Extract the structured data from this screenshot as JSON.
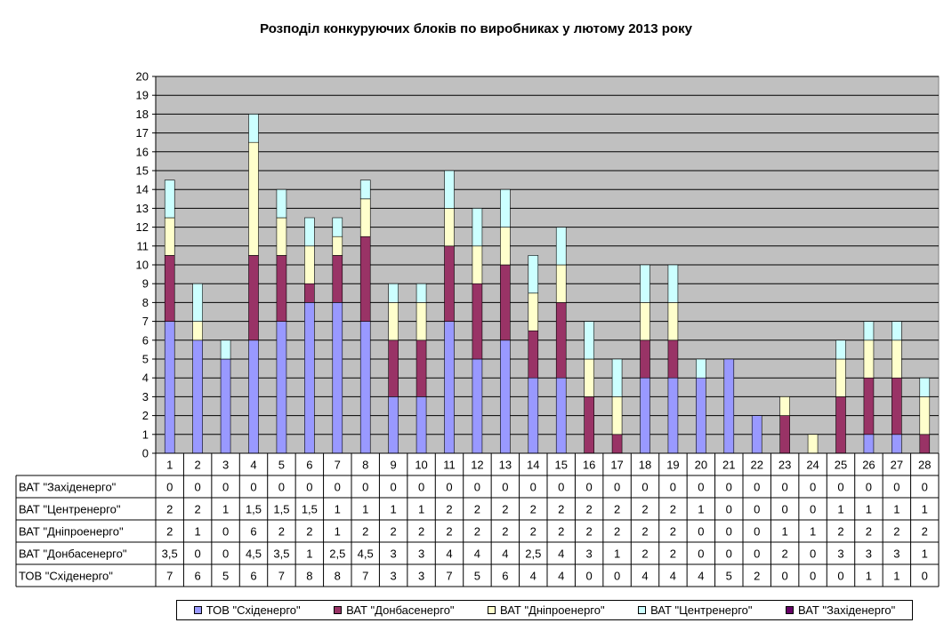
{
  "chart_data": {
    "type": "bar",
    "stacked": true,
    "title": "Розподіл конкуруючих блоків по виробниках у лютому 2013 року",
    "categories": [
      "1",
      "2",
      "3",
      "4",
      "5",
      "6",
      "7",
      "8",
      "9",
      "10",
      "11",
      "12",
      "13",
      "14",
      "15",
      "16",
      "17",
      "18",
      "19",
      "20",
      "21",
      "22",
      "23",
      "24",
      "25",
      "26",
      "27",
      "28"
    ],
    "ylim": [
      0,
      20
    ],
    "y_ticks": [
      "0",
      "1",
      "2",
      "3",
      "4",
      "5",
      "6",
      "7",
      "8",
      "9",
      "10",
      "11",
      "12",
      "13",
      "14",
      "15",
      "16",
      "17",
      "18",
      "19",
      "20"
    ],
    "grid": true,
    "legend_position": "bottom",
    "series": [
      {
        "name": "ТОВ \"Східенерго\"",
        "color": "#9999ff",
        "values": [
          7,
          6,
          5,
          6,
          7,
          8,
          8,
          7,
          3,
          3,
          7,
          5,
          6,
          4,
          4,
          0,
          0,
          4,
          4,
          4,
          5,
          2,
          0,
          0,
          0,
          1,
          1,
          0
        ],
        "labels": [
          "7",
          "6",
          "5",
          "6",
          "7",
          "8",
          "8",
          "7",
          "3",
          "3",
          "7",
          "5",
          "6",
          "4",
          "4",
          "0",
          "0",
          "4",
          "4",
          "4",
          "5",
          "2",
          "0",
          "0",
          "0",
          "1",
          "1",
          "0"
        ]
      },
      {
        "name": "ВАТ \"Донбасенерго\"",
        "color": "#993366",
        "values": [
          3.5,
          0,
          0,
          4.5,
          3.5,
          1,
          2.5,
          4.5,
          3,
          3,
          4,
          4,
          4,
          2.5,
          4,
          3,
          1,
          2,
          2,
          0,
          0,
          0,
          2,
          0,
          3,
          3,
          3,
          1
        ],
        "labels": [
          "3,5",
          "0",
          "0",
          "4,5",
          "3,5",
          "1",
          "2,5",
          "4,5",
          "3",
          "3",
          "4",
          "4",
          "4",
          "2,5",
          "4",
          "3",
          "1",
          "2",
          "2",
          "0",
          "0",
          "0",
          "2",
          "0",
          "3",
          "3",
          "3",
          "1"
        ]
      },
      {
        "name": "ВАТ \"Дніпроенерго\"",
        "color": "#ffffcc",
        "values": [
          2,
          1,
          0,
          6,
          2,
          2,
          1,
          2,
          2,
          2,
          2,
          2,
          2,
          2,
          2,
          2,
          2,
          2,
          2,
          0,
          0,
          0,
          1,
          1,
          2,
          2,
          2,
          2
        ],
        "labels": [
          "2",
          "1",
          "0",
          "6",
          "2",
          "2",
          "1",
          "2",
          "2",
          "2",
          "2",
          "2",
          "2",
          "2",
          "2",
          "2",
          "2",
          "2",
          "2",
          "0",
          "0",
          "0",
          "1",
          "1",
          "2",
          "2",
          "2",
          "2"
        ]
      },
      {
        "name": "ВАТ \"Центренерго\"",
        "color": "#ccffff",
        "values": [
          2,
          2,
          1,
          1.5,
          1.5,
          1.5,
          1,
          1,
          1,
          1,
          2,
          2,
          2,
          2,
          2,
          2,
          2,
          2,
          2,
          1,
          0,
          0,
          0,
          0,
          1,
          1,
          1,
          1
        ],
        "labels": [
          "2",
          "2",
          "1",
          "1,5",
          "1,5",
          "1,5",
          "1",
          "1",
          "1",
          "1",
          "2",
          "2",
          "2",
          "2",
          "2",
          "2",
          "2",
          "2",
          "2",
          "1",
          "0",
          "0",
          "0",
          "0",
          "1",
          "1",
          "1",
          "1"
        ]
      },
      {
        "name": "ВАТ \"Західенерго\"",
        "color": "#660066",
        "values": [
          0,
          0,
          0,
          0,
          0,
          0,
          0,
          0,
          0,
          0,
          0,
          0,
          0,
          0,
          0,
          0,
          0,
          0,
          0,
          0,
          0,
          0,
          0,
          0,
          0,
          0,
          0,
          0
        ],
        "labels": [
          "0",
          "0",
          "0",
          "0",
          "0",
          "0",
          "0",
          "0",
          "0",
          "0",
          "0",
          "0",
          "0",
          "0",
          "0",
          "0",
          "0",
          "0",
          "0",
          "0",
          "0",
          "0",
          "0",
          "0",
          "0",
          "0",
          "0",
          "0"
        ]
      }
    ],
    "table_row_order": [
      4,
      3,
      2,
      1,
      0
    ]
  }
}
